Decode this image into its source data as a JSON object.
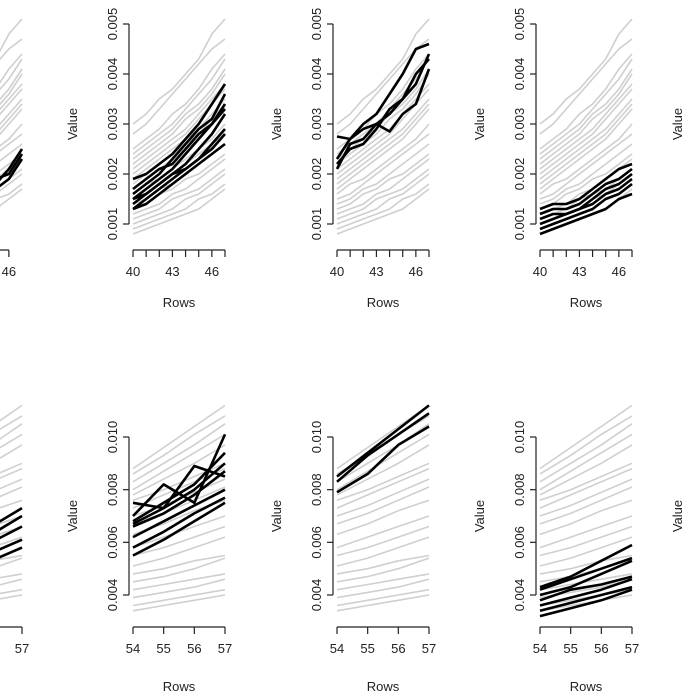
{
  "chart_data": [
    {
      "type": "line",
      "panel": "top-left-partial",
      "xlabel": "Rows",
      "ylabel": "Value",
      "x": [
        40,
        41,
        42,
        43,
        44,
        45,
        46,
        47
      ],
      "xticks": [
        40,
        43,
        46
      ],
      "visible_xtick_labels": [
        "46"
      ],
      "ylim": [
        0.0007,
        0.0052
      ],
      "yticks": [],
      "highlight": [
        {
          "name": "h1",
          "values": [
            0.0012,
            0.0013,
            0.0014,
            0.0015,
            0.0017,
            0.0018,
            0.0021,
            0.0025
          ]
        },
        {
          "name": "h2",
          "values": [
            0.0011,
            0.0012,
            0.0013,
            0.0015,
            0.0016,
            0.0017,
            0.0019,
            0.0023
          ]
        },
        {
          "name": "h3",
          "values": [
            0.0013,
            0.0014,
            0.0015,
            0.0016,
            0.0018,
            0.0019,
            0.002,
            0.0024
          ]
        }
      ]
    },
    {
      "type": "line",
      "panel": "top-1",
      "xlabel": "Rows",
      "ylabel": "Value",
      "x": [
        40,
        41,
        42,
        43,
        44,
        45,
        46,
        47
      ],
      "xticks": [
        40,
        41,
        42,
        43,
        44,
        45,
        46,
        47
      ],
      "xtick_labels": [
        "40",
        "43",
        "46"
      ],
      "yticks": [
        0.001,
        0.002,
        0.003,
        0.004,
        0.005
      ],
      "ytick_labels": [
        "0.001",
        "0.002",
        "0.003",
        "0.004",
        "0.005"
      ],
      "ylim": [
        0.0007,
        0.0052
      ],
      "highlight": [
        {
          "name": "h1",
          "values": [
            0.0019,
            0.002,
            0.0022,
            0.0024,
            0.0027,
            0.003,
            0.0034,
            0.0038
          ]
        },
        {
          "name": "h2",
          "values": [
            0.0016,
            0.0018,
            0.002,
            0.0023,
            0.0026,
            0.0029,
            0.0031,
            0.0036
          ]
        },
        {
          "name": "h3",
          "values": [
            0.0015,
            0.0017,
            0.0019,
            0.0021,
            0.0024,
            0.0027,
            0.003,
            0.0034
          ]
        },
        {
          "name": "h4",
          "values": [
            0.0014,
            0.0016,
            0.0018,
            0.002,
            0.0022,
            0.0025,
            0.0028,
            0.0032
          ]
        },
        {
          "name": "h5",
          "values": [
            0.0013,
            0.0015,
            0.0017,
            0.0019,
            0.0021,
            0.0023,
            0.0026,
            0.0029
          ]
        },
        {
          "name": "h6",
          "values": [
            0.0013,
            0.0014,
            0.0016,
            0.0018,
            0.002,
            0.0022,
            0.0024,
            0.0026
          ]
        },
        {
          "name": "h7",
          "values": [
            0.0017,
            0.0019,
            0.0021,
            0.0022,
            0.0025,
            0.0028,
            0.003,
            0.0033
          ]
        },
        {
          "name": "h8",
          "values": [
            0.0015,
            0.0016,
            0.0018,
            0.002,
            0.0021,
            0.0023,
            0.0025,
            0.0028
          ]
        }
      ]
    },
    {
      "type": "line",
      "panel": "top-2",
      "xlabel": "Rows",
      "ylabel": "Value",
      "x": [
        40,
        41,
        42,
        43,
        44,
        45,
        46,
        47
      ],
      "xticks": [
        40,
        41,
        42,
        43,
        44,
        45,
        46,
        47
      ],
      "xtick_labels": [
        "40",
        "43",
        "46"
      ],
      "yticks": [
        0.001,
        0.002,
        0.003,
        0.004,
        0.005
      ],
      "ytick_labels": [
        "0.001",
        "0.002",
        "0.003",
        "0.004",
        "0.005"
      ],
      "ylim": [
        0.0007,
        0.0052
      ],
      "highlight": [
        {
          "name": "h1",
          "values": [
            0.0023,
            0.0027,
            0.003,
            0.0032,
            0.0036,
            0.004,
            0.0045,
            0.0046
          ]
        },
        {
          "name": "h2",
          "values": [
            0.00275,
            0.0027,
            0.0029,
            0.003,
            0.0032,
            0.0035,
            0.004,
            0.0043
          ]
        },
        {
          "name": "h3",
          "values": [
            0.0021,
            0.0026,
            0.0027,
            0.003,
            0.00285,
            0.0032,
            0.0034,
            0.0041
          ]
        },
        {
          "name": "h4",
          "values": [
            0.0022,
            0.0025,
            0.0026,
            0.0029,
            0.0033,
            0.0035,
            0.0038,
            0.0044
          ]
        }
      ]
    },
    {
      "type": "line",
      "panel": "top-3",
      "xlabel": "Rows",
      "ylabel": "Value",
      "x": [
        40,
        41,
        42,
        43,
        44,
        45,
        46,
        47
      ],
      "xticks": [
        40,
        41,
        42,
        43,
        44,
        45,
        46,
        47
      ],
      "xtick_labels": [
        "40",
        "43",
        "46"
      ],
      "yticks": [
        0.001,
        0.002,
        0.003,
        0.004,
        0.005
      ],
      "ytick_labels": [
        "0.001",
        "0.002",
        "0.003",
        "0.004",
        "0.005"
      ],
      "ylim": [
        0.0007,
        0.0052
      ],
      "highlight": [
        {
          "name": "h1",
          "values": [
            0.0013,
            0.0014,
            0.0014,
            0.0015,
            0.0017,
            0.0019,
            0.0021,
            0.0022
          ]
        },
        {
          "name": "h2",
          "values": [
            0.0012,
            0.0013,
            0.0013,
            0.0014,
            0.0016,
            0.0018,
            0.0019,
            0.0021
          ]
        },
        {
          "name": "h3",
          "values": [
            0.0011,
            0.0012,
            0.0012,
            0.0013,
            0.0015,
            0.0017,
            0.0018,
            0.002
          ]
        },
        {
          "name": "h4",
          "values": [
            0.001,
            0.0011,
            0.0012,
            0.0013,
            0.0014,
            0.0016,
            0.0017,
            0.0019
          ]
        },
        {
          "name": "h5",
          "values": [
            0.0009,
            0.001,
            0.0011,
            0.0012,
            0.0013,
            0.0015,
            0.0016,
            0.0018
          ]
        },
        {
          "name": "h6",
          "values": [
            0.0008,
            0.0009,
            0.001,
            0.0011,
            0.0012,
            0.0013,
            0.0015,
            0.0016
          ]
        }
      ]
    },
    {
      "type": "line",
      "panel": "bottom-left-partial",
      "xlabel": "Rows",
      "ylabel": "Value",
      "x": [
        54,
        55,
        56,
        57
      ],
      "visible_xtick_labels": [
        "57"
      ],
      "ylim": [
        0.0031,
        0.0113
      ],
      "highlight": [
        {
          "name": "h1",
          "values": [
            0.0052,
            0.006,
            0.0066,
            0.0073
          ]
        },
        {
          "name": "h2",
          "values": [
            0.005,
            0.0057,
            0.0063,
            0.007
          ]
        },
        {
          "name": "h3",
          "values": [
            0.0048,
            0.0054,
            0.006,
            0.0066
          ]
        },
        {
          "name": "h4",
          "values": [
            0.0046,
            0.0051,
            0.0056,
            0.0061
          ]
        },
        {
          "name": "h5",
          "values": [
            0.0044,
            0.0049,
            0.0053,
            0.0058
          ]
        }
      ]
    },
    {
      "type": "line",
      "panel": "bottom-1",
      "xlabel": "Rows",
      "ylabel": "Value",
      "x": [
        54,
        55,
        56,
        57
      ],
      "xticks": [
        54,
        55,
        56,
        57
      ],
      "xtick_labels": [
        "54",
        "55",
        "56",
        "57"
      ],
      "yticks": [
        0.004,
        0.006,
        0.008,
        0.01
      ],
      "ytick_labels": [
        "0.004",
        "0.006",
        "0.008",
        "0.010"
      ],
      "ylim": [
        0.0031,
        0.0113
      ],
      "highlight": [
        {
          "name": "h1",
          "values": [
            0.0075,
            0.0073,
            0.0089,
            0.0085
          ]
        },
        {
          "name": "h2",
          "values": [
            0.007,
            0.0082,
            0.0075,
            0.0101
          ]
        },
        {
          "name": "h3",
          "values": [
            0.0068,
            0.0075,
            0.0082,
            0.0094
          ]
        },
        {
          "name": "h4",
          "values": [
            0.0067,
            0.0073,
            0.008,
            0.009
          ]
        },
        {
          "name": "h5",
          "values": [
            0.0066,
            0.0071,
            0.0078,
            0.0087
          ]
        },
        {
          "name": "h6",
          "values": [
            0.0062,
            0.0068,
            0.0074,
            0.008
          ]
        },
        {
          "name": "h7",
          "values": [
            0.0058,
            0.0064,
            0.0071,
            0.0077
          ]
        },
        {
          "name": "h8",
          "values": [
            0.0055,
            0.0061,
            0.0068,
            0.0075
          ]
        }
      ]
    },
    {
      "type": "line",
      "panel": "bottom-2",
      "xlabel": "Rows",
      "ylabel": "Value",
      "x": [
        54,
        55,
        56,
        57
      ],
      "xticks": [
        54,
        55,
        56,
        57
      ],
      "xtick_labels": [
        "54",
        "55",
        "56",
        "57"
      ],
      "yticks": [
        0.004,
        0.006,
        0.008,
        0.01
      ],
      "ytick_labels": [
        "0.004",
        "0.006",
        "0.008",
        "0.010"
      ],
      "ylim": [
        0.0031,
        0.0113
      ],
      "highlight": [
        {
          "name": "h1",
          "values": [
            0.0085,
            0.0094,
            0.0103,
            0.0112
          ]
        },
        {
          "name": "h2",
          "values": [
            0.0083,
            0.0093,
            0.0101,
            0.0109
          ]
        },
        {
          "name": "h3",
          "values": [
            0.0079,
            0.0086,
            0.0097,
            0.0104
          ]
        }
      ]
    },
    {
      "type": "line",
      "panel": "bottom-3",
      "xlabel": "Rows",
      "ylabel": "Value",
      "x": [
        54,
        55,
        56,
        57
      ],
      "xticks": [
        54,
        55,
        56,
        57
      ],
      "xtick_labels": [
        "54",
        "55",
        "56",
        "57"
      ],
      "yticks": [
        0.004,
        0.006,
        0.008,
        0.01
      ],
      "ytick_labels": [
        "0.004",
        "0.006",
        "0.008",
        "0.010"
      ],
      "ylim": [
        0.0031,
        0.0113
      ],
      "highlight": [
        {
          "name": "h1",
          "values": [
            0.0043,
            0.0047,
            0.0053,
            0.0059
          ]
        },
        {
          "name": "h2",
          "values": [
            0.0042,
            0.0046,
            0.005,
            0.0054
          ]
        },
        {
          "name": "h3",
          "values": [
            0.004,
            0.0043,
            0.0048,
            0.0053
          ]
        },
        {
          "name": "h4",
          "values": [
            0.0038,
            0.0042,
            0.0044,
            0.0047
          ]
        },
        {
          "name": "h5",
          "values": [
            0.0036,
            0.0039,
            0.0042,
            0.0046
          ]
        },
        {
          "name": "h6",
          "values": [
            0.0034,
            0.0037,
            0.004,
            0.0043
          ]
        },
        {
          "name": "h7",
          "values": [
            0.0032,
            0.0035,
            0.0038,
            0.0042
          ]
        }
      ]
    },
    {
      "type": "line",
      "panel": "right-partial",
      "ylabel": "Value"
    }
  ],
  "background_series": {
    "top": [
      [
        0.003,
        0.0032,
        0.0035,
        0.0037,
        0.004,
        0.0043,
        0.0048,
        0.0051
      ],
      [
        0.0028,
        0.003,
        0.0033,
        0.0036,
        0.0039,
        0.0042,
        0.0045,
        0.0047
      ],
      [
        0.0025,
        0.0027,
        0.0029,
        0.0032,
        0.0034,
        0.0037,
        0.0041,
        0.0044
      ],
      [
        0.0024,
        0.0026,
        0.0028,
        0.003,
        0.0033,
        0.0036,
        0.0039,
        0.0043
      ],
      [
        0.0023,
        0.0025,
        0.0027,
        0.0029,
        0.0032,
        0.0034,
        0.0037,
        0.0041
      ],
      [
        0.0022,
        0.0024,
        0.0026,
        0.0028,
        0.0031,
        0.0033,
        0.0036,
        0.004
      ],
      [
        0.0021,
        0.0023,
        0.0025,
        0.0027,
        0.0029,
        0.0032,
        0.0035,
        0.0038
      ],
      [
        0.002,
        0.0022,
        0.0024,
        0.0026,
        0.0028,
        0.0031,
        0.0034,
        0.0037
      ],
      [
        0.0019,
        0.0021,
        0.0023,
        0.0025,
        0.0027,
        0.0029,
        0.0032,
        0.0035
      ],
      [
        0.0018,
        0.002,
        0.0022,
        0.0024,
        0.0026,
        0.0028,
        0.0031,
        0.0034
      ],
      [
        0.0017,
        0.0019,
        0.0021,
        0.0023,
        0.0025,
        0.0027,
        0.003,
        0.0033
      ],
      [
        0.0016,
        0.0018,
        0.0019,
        0.0021,
        0.0023,
        0.0025,
        0.0027,
        0.003
      ],
      [
        0.0015,
        0.0016,
        0.0018,
        0.002,
        0.0022,
        0.0024,
        0.0026,
        0.0028
      ],
      [
        0.0014,
        0.0015,
        0.0017,
        0.0018,
        0.002,
        0.0022,
        0.0024,
        0.0026
      ],
      [
        0.0013,
        0.0014,
        0.0016,
        0.0017,
        0.0019,
        0.002,
        0.0022,
        0.0024
      ],
      [
        0.0012,
        0.0013,
        0.0014,
        0.0016,
        0.0017,
        0.0019,
        0.0021,
        0.0023
      ],
      [
        0.0011,
        0.0012,
        0.0013,
        0.0015,
        0.0016,
        0.0017,
        0.0019,
        0.0021
      ],
      [
        0.001,
        0.0011,
        0.0012,
        0.0013,
        0.0015,
        0.0016,
        0.0018,
        0.002
      ],
      [
        0.0009,
        0.001,
        0.0011,
        0.0012,
        0.0013,
        0.0015,
        0.0016,
        0.0018
      ],
      [
        0.0008,
        0.0009,
        0.001,
        0.0011,
        0.0012,
        0.0013,
        0.0015,
        0.0017
      ]
    ],
    "bottom": [
      [
        0.0088,
        0.0096,
        0.0104,
        0.0112
      ],
      [
        0.0086,
        0.0093,
        0.0101,
        0.0108
      ],
      [
        0.0083,
        0.009,
        0.0097,
        0.0105
      ],
      [
        0.008,
        0.0087,
        0.0094,
        0.0101
      ],
      [
        0.0078,
        0.0084,
        0.009,
        0.0097
      ],
      [
        0.0076,
        0.008,
        0.0085,
        0.009
      ],
      [
        0.0073,
        0.0078,
        0.0083,
        0.0088
      ],
      [
        0.007,
        0.0074,
        0.0079,
        0.0084
      ],
      [
        0.0067,
        0.0071,
        0.0076,
        0.0081
      ],
      [
        0.0063,
        0.0067,
        0.0072,
        0.0076
      ],
      [
        0.0058,
        0.0062,
        0.0066,
        0.007
      ],
      [
        0.0055,
        0.0058,
        0.0062,
        0.0066
      ],
      [
        0.0051,
        0.0054,
        0.0058,
        0.0062
      ],
      [
        0.0048,
        0.005,
        0.0053,
        0.0055
      ],
      [
        0.0045,
        0.0047,
        0.005,
        0.0054
      ],
      [
        0.0042,
        0.0044,
        0.0046,
        0.0048
      ],
      [
        0.0039,
        0.0041,
        0.0043,
        0.0046
      ],
      [
        0.0036,
        0.0038,
        0.004,
        0.0042
      ],
      [
        0.0034,
        0.0036,
        0.0038,
        0.004
      ]
    ]
  },
  "labels": {
    "xlabel": "Rows",
    "ylabel": "Value"
  }
}
